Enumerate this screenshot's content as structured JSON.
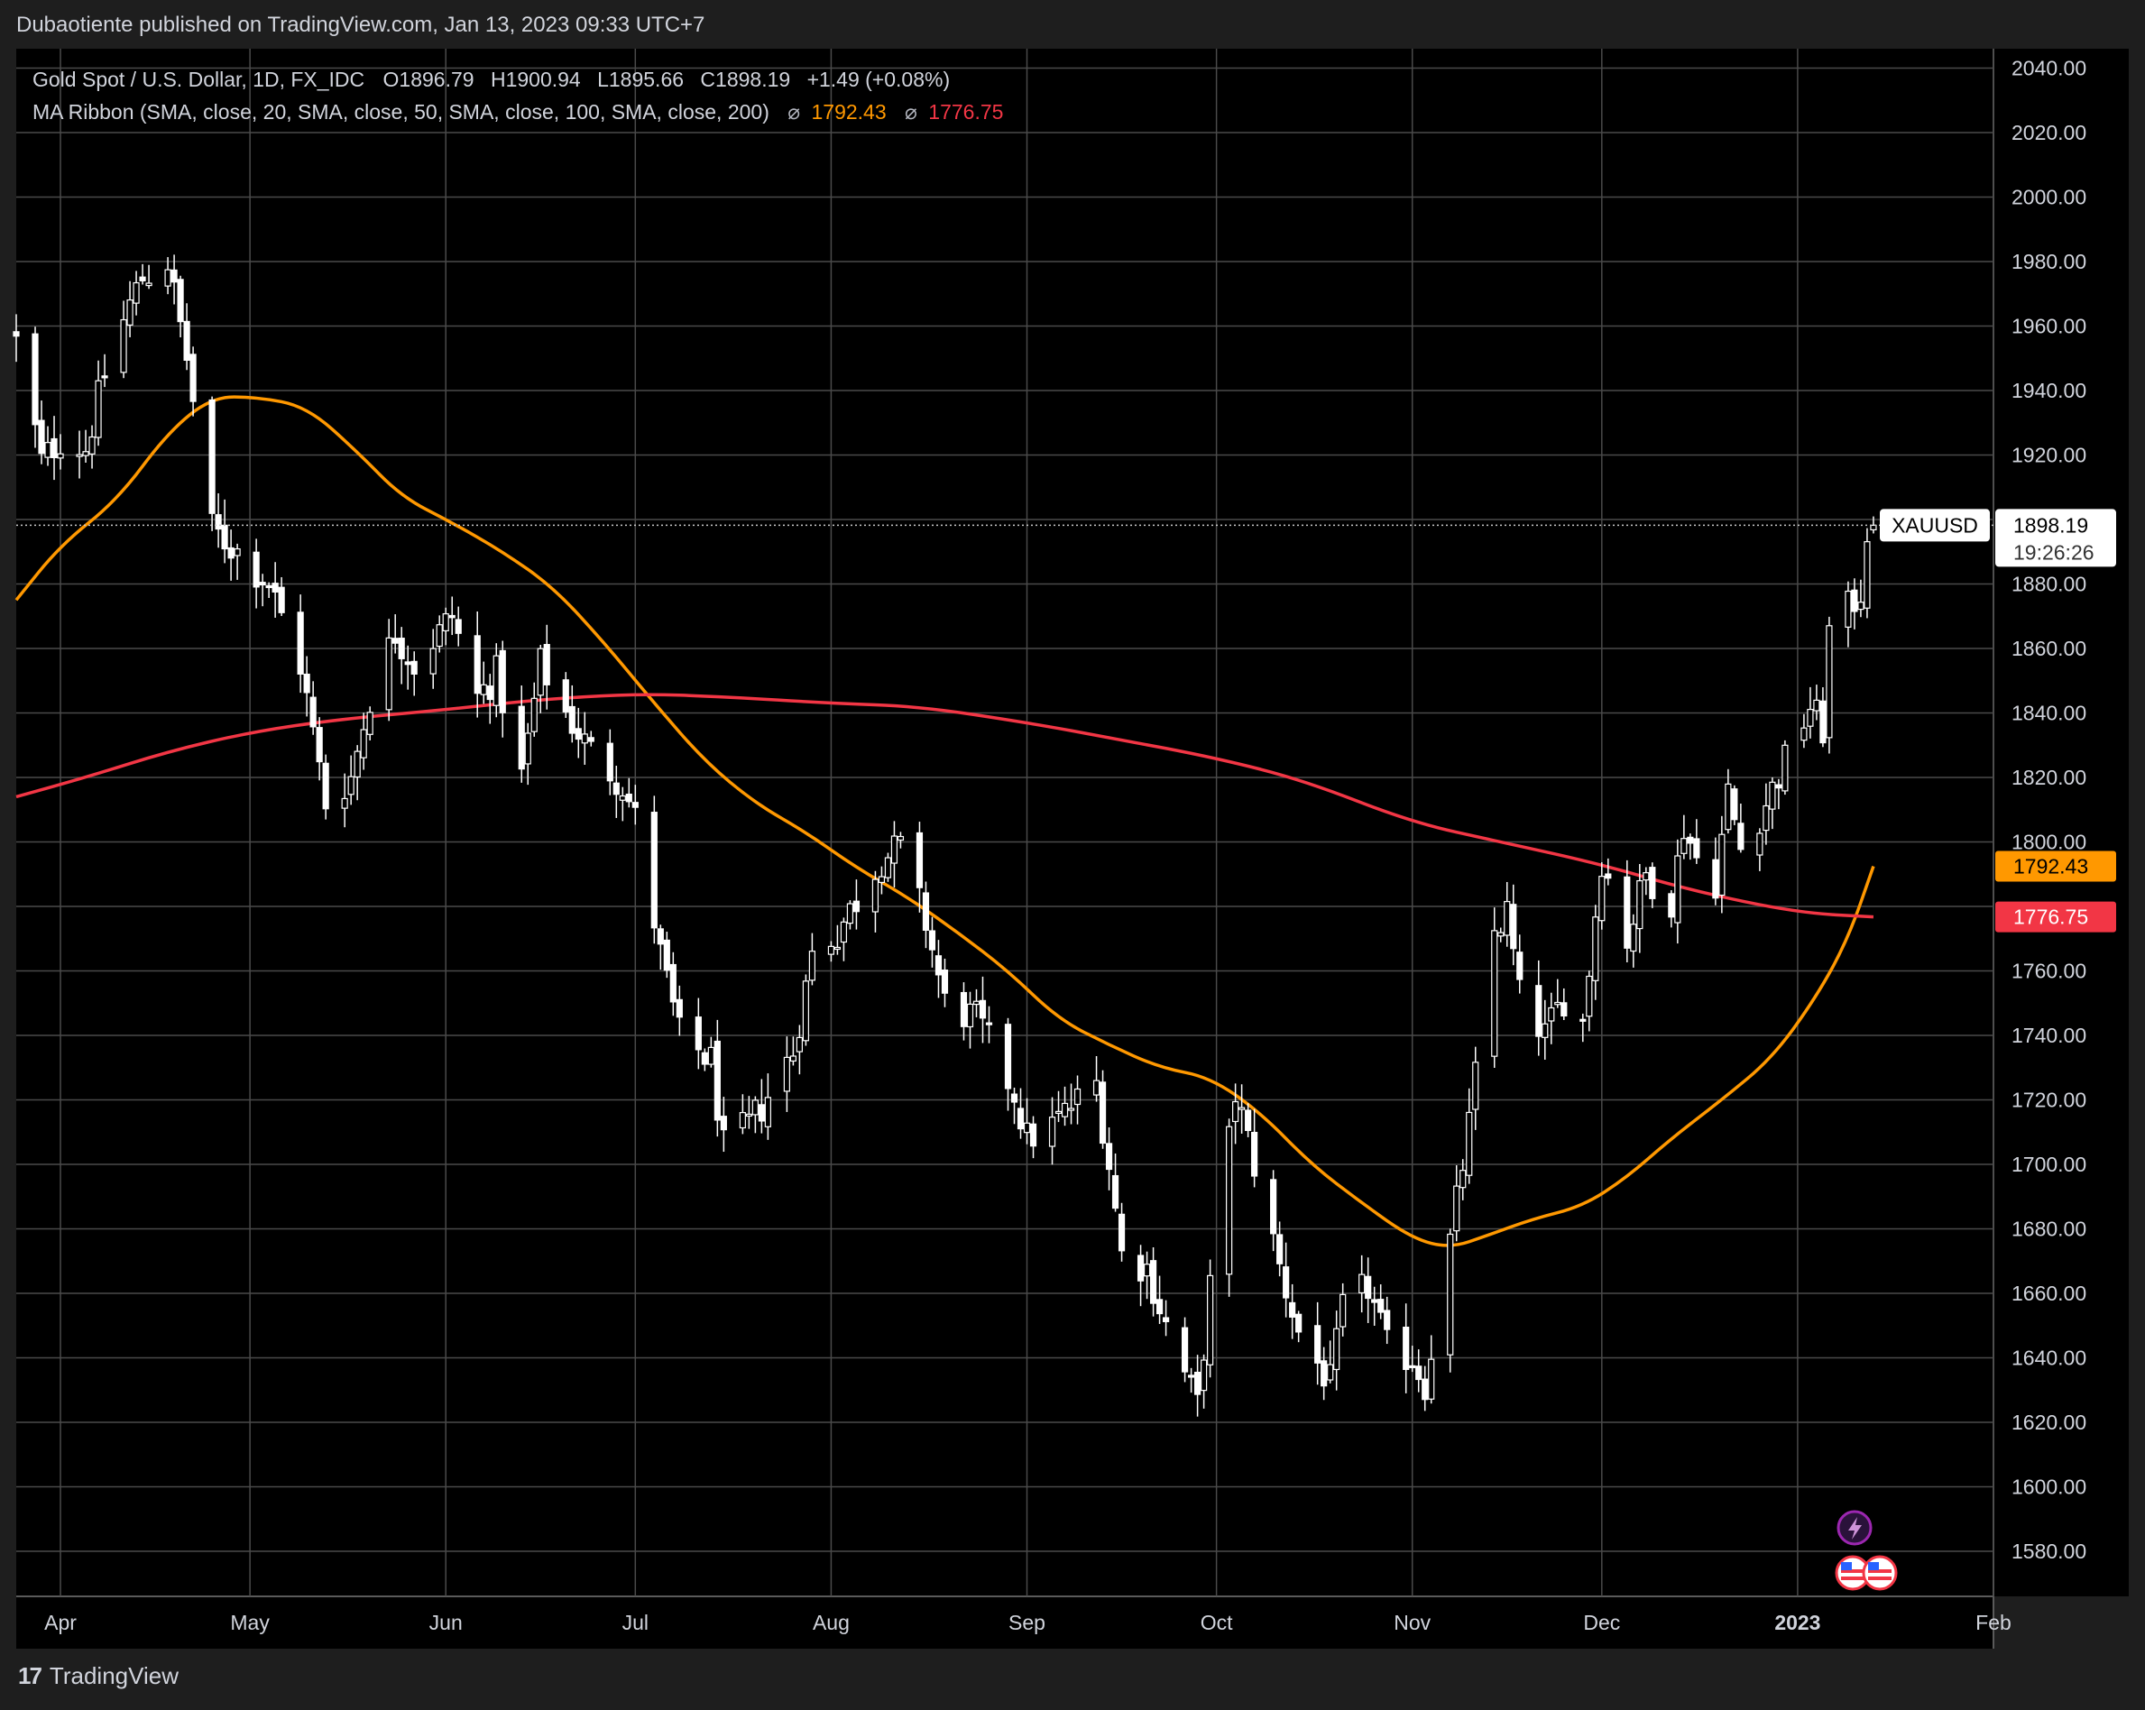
{
  "header": {
    "published_text": "Dubaotiente published on TradingView.com, Jan 13, 2023 09:33 UTC+7"
  },
  "legend": {
    "symbol_line": "Gold Spot / U.S. Dollar, 1D, FX_IDC",
    "open": "O1896.79",
    "high": "H1900.94",
    "low": "L1895.66",
    "close": "C1898.19",
    "change": "+1.49 (+0.08%)",
    "indicator_line": "MA Ribbon (SMA, close, 20, SMA, close, 50, SMA, close, 100, SMA, close, 200)",
    "ma1_value": "1792.43",
    "ma2_value": "1776.75",
    "ma_symbol": "⌀"
  },
  "colors": {
    "background": "#000000",
    "frame": "#1e1e1e",
    "grid": "#4a4a4a",
    "candle": "#ffffff",
    "ma_orange": "#ff9800",
    "ma_red": "#f23645"
  },
  "price_labels": {
    "symbol": "XAUUSD",
    "last_price": "1898.19",
    "countdown": "19:26:26",
    "ma1": "1792.43",
    "ma2": "1776.75"
  },
  "brand": {
    "name": "TradingView",
    "logo_text": "17"
  },
  "icons": {
    "flash": "lightning-icon",
    "flag": "us-flag-icon"
  },
  "chart_data": {
    "type": "candlestick",
    "title": "Gold Spot / U.S. Dollar, 1D, FX_IDC",
    "y_ticks": [
      1580,
      1600,
      1620,
      1640,
      1660,
      1680,
      1700,
      1720,
      1740,
      1760,
      1780,
      1800,
      1820,
      1840,
      1860,
      1880,
      1900,
      1920,
      1940,
      1960,
      1980,
      2000,
      2020,
      2040
    ],
    "y_tick_labels": [
      "1580.00",
      "1600.00",
      "1620.00",
      "1640.00",
      "1660.00",
      "1680.00",
      "1700.00",
      "1720.00",
      "1740.00",
      "1760.00",
      "",
      "1800.00",
      "1820.00",
      "1840.00",
      "1860.00",
      "1880.00",
      "",
      "1920.00",
      "1940.00",
      "1960.00",
      "1980.00",
      "2000.00",
      "2020.00",
      "2040.00"
    ],
    "ylim": [
      1566,
      2046
    ],
    "x_labels": [
      {
        "label": "Apr",
        "date": "2022-04-01",
        "bold": false
      },
      {
        "label": "May",
        "date": "2022-05-01",
        "bold": false
      },
      {
        "label": "Jun",
        "date": "2022-06-01",
        "bold": false
      },
      {
        "label": "Jul",
        "date": "2022-07-01",
        "bold": false
      },
      {
        "label": "Aug",
        "date": "2022-08-01",
        "bold": false
      },
      {
        "label": "Sep",
        "date": "2022-09-01",
        "bold": false
      },
      {
        "label": "Oct",
        "date": "2022-10-01",
        "bold": false
      },
      {
        "label": "Nov",
        "date": "2022-11-01",
        "bold": false
      },
      {
        "label": "Dec",
        "date": "2022-12-01",
        "bold": false
      },
      {
        "label": "2023",
        "date": "2023-01-01",
        "bold": true
      },
      {
        "label": "Feb",
        "date": "2023-02-01",
        "bold": false
      }
    ],
    "xlim": [
      "2022-03-25",
      "2023-02-01"
    ],
    "close_anchors": [
      [
        "2022-03-25",
        1955
      ],
      [
        "2022-03-29",
        1918
      ],
      [
        "2022-04-01",
        1925
      ],
      [
        "2022-04-05",
        1922
      ],
      [
        "2022-04-08",
        1945
      ],
      [
        "2022-04-12",
        1967
      ],
      [
        "2022-04-14",
        1975
      ],
      [
        "2022-04-18",
        1980
      ],
      [
        "2022-04-21",
        1950
      ],
      [
        "2022-04-25",
        1897
      ],
      [
        "2022-04-29",
        1890
      ],
      [
        "2022-05-04",
        1880
      ],
      [
        "2022-05-09",
        1855
      ],
      [
        "2022-05-13",
        1812
      ],
      [
        "2022-05-17",
        1820
      ],
      [
        "2022-05-20",
        1845
      ],
      [
        "2022-05-24",
        1865
      ],
      [
        "2022-05-27",
        1855
      ],
      [
        "2022-06-02",
        1870
      ],
      [
        "2022-06-06",
        1845
      ],
      [
        "2022-06-09",
        1852
      ],
      [
        "2022-06-13",
        1820
      ],
      [
        "2022-06-16",
        1855
      ],
      [
        "2022-06-20",
        1840
      ],
      [
        "2022-06-24",
        1828
      ],
      [
        "2022-06-29",
        1818
      ],
      [
        "2022-07-01",
        1807
      ],
      [
        "2022-07-05",
        1765
      ],
      [
        "2022-07-08",
        1740
      ],
      [
        "2022-07-13",
        1732
      ],
      [
        "2022-07-15",
        1705
      ],
      [
        "2022-07-19",
        1712
      ],
      [
        "2022-07-21",
        1718
      ],
      [
        "2022-07-26",
        1735
      ],
      [
        "2022-07-29",
        1765
      ],
      [
        "2022-08-02",
        1772
      ],
      [
        "2022-08-05",
        1782
      ],
      [
        "2022-08-09",
        1795
      ],
      [
        "2022-08-12",
        1798
      ],
      [
        "2022-08-16",
        1775
      ],
      [
        "2022-08-19",
        1750
      ],
      [
        "2022-08-24",
        1745
      ],
      [
        "2022-08-26",
        1738
      ],
      [
        "2022-08-30",
        1722
      ],
      [
        "2022-09-01",
        1708
      ],
      [
        "2022-09-05",
        1712
      ],
      [
        "2022-09-08",
        1718
      ],
      [
        "2022-09-12",
        1725
      ],
      [
        "2022-09-14",
        1700
      ],
      [
        "2022-09-16",
        1672
      ],
      [
        "2022-09-20",
        1668
      ],
      [
        "2022-09-23",
        1650
      ],
      [
        "2022-09-28",
        1625
      ],
      [
        "2022-09-30",
        1662
      ],
      [
        "2022-10-04",
        1722
      ],
      [
        "2022-10-07",
        1700
      ],
      [
        "2022-10-11",
        1668
      ],
      [
        "2022-10-14",
        1648
      ],
      [
        "2022-10-19",
        1632
      ],
      [
        "2022-10-21",
        1655
      ],
      [
        "2022-10-25",
        1662
      ],
      [
        "2022-10-28",
        1643
      ],
      [
        "2022-11-01",
        1640
      ],
      [
        "2022-11-03",
        1632
      ],
      [
        "2022-11-07",
        1676
      ],
      [
        "2022-11-10",
        1712
      ],
      [
        "2022-11-14",
        1772
      ],
      [
        "2022-11-16",
        1778
      ],
      [
        "2022-11-18",
        1752
      ],
      [
        "2022-11-22",
        1740
      ],
      [
        "2022-11-25",
        1752
      ],
      [
        "2022-11-28",
        1744
      ],
      [
        "2022-12-01",
        1795
      ],
      [
        "2022-12-05",
        1770
      ],
      [
        "2022-12-08",
        1790
      ],
      [
        "2022-12-12",
        1782
      ],
      [
        "2022-12-14",
        1805
      ],
      [
        "2022-12-16",
        1795
      ],
      [
        "2022-12-19",
        1788
      ],
      [
        "2022-12-21",
        1815
      ],
      [
        "2022-12-23",
        1798
      ],
      [
        "2022-12-27",
        1812
      ],
      [
        "2022-12-30",
        1825
      ],
      [
        "2023-01-03",
        1842
      ],
      [
        "2023-01-05",
        1835
      ],
      [
        "2023-01-06",
        1865
      ],
      [
        "2023-01-09",
        1872
      ],
      [
        "2023-01-11",
        1878
      ],
      [
        "2023-01-12",
        1897
      ],
      [
        "2023-01-13",
        1898.19
      ]
    ],
    "ma_series": [
      {
        "name": "MA Ribbon SMA 50",
        "color": "#ff9800",
        "points": [
          [
            "2022-03-25",
            1875
          ],
          [
            "2022-04-01",
            1892
          ],
          [
            "2022-04-10",
            1906
          ],
          [
            "2022-04-18",
            1927
          ],
          [
            "2022-04-25",
            1938
          ],
          [
            "2022-05-02",
            1938
          ],
          [
            "2022-05-10",
            1935
          ],
          [
            "2022-05-18",
            1921
          ],
          [
            "2022-05-25",
            1907
          ],
          [
            "2022-06-02",
            1899
          ],
          [
            "2022-06-10",
            1890
          ],
          [
            "2022-06-18",
            1879
          ],
          [
            "2022-06-26",
            1862
          ],
          [
            "2022-07-04",
            1843
          ],
          [
            "2022-07-12",
            1825
          ],
          [
            "2022-07-20",
            1812
          ],
          [
            "2022-07-28",
            1803
          ],
          [
            "2022-08-05",
            1792
          ],
          [
            "2022-08-13",
            1783
          ],
          [
            "2022-08-21",
            1772
          ],
          [
            "2022-08-29",
            1760
          ],
          [
            "2022-09-06",
            1745
          ],
          [
            "2022-09-14",
            1737
          ],
          [
            "2022-09-22",
            1730
          ],
          [
            "2022-09-30",
            1727
          ],
          [
            "2022-10-08",
            1716
          ],
          [
            "2022-10-16",
            1700
          ],
          [
            "2022-10-24",
            1688
          ],
          [
            "2022-11-01",
            1677
          ],
          [
            "2022-11-07",
            1674
          ],
          [
            "2022-11-13",
            1678
          ],
          [
            "2022-11-20",
            1683
          ],
          [
            "2022-11-28",
            1687
          ],
          [
            "2022-12-05",
            1696
          ],
          [
            "2022-12-12",
            1708
          ],
          [
            "2022-12-20",
            1720
          ],
          [
            "2022-12-28",
            1733
          ],
          [
            "2023-01-04",
            1752
          ],
          [
            "2023-01-09",
            1770
          ],
          [
            "2023-01-13",
            1792.43
          ]
        ]
      },
      {
        "name": "MA Ribbon SMA 200",
        "color": "#f23645",
        "points": [
          [
            "2022-03-25",
            1814
          ],
          [
            "2022-04-05",
            1820
          ],
          [
            "2022-04-18",
            1828
          ],
          [
            "2022-05-01",
            1834
          ],
          [
            "2022-05-15",
            1838
          ],
          [
            "2022-06-01",
            1841
          ],
          [
            "2022-06-15",
            1844
          ],
          [
            "2022-07-01",
            1846
          ],
          [
            "2022-07-15",
            1845
          ],
          [
            "2022-08-01",
            1843
          ],
          [
            "2022-08-15",
            1842
          ],
          [
            "2022-09-01",
            1837
          ],
          [
            "2022-09-15",
            1832
          ],
          [
            "2022-10-01",
            1826
          ],
          [
            "2022-10-15",
            1819
          ],
          [
            "2022-11-01",
            1806
          ],
          [
            "2022-11-15",
            1800
          ],
          [
            "2022-12-01",
            1793
          ],
          [
            "2022-12-15",
            1785
          ],
          [
            "2023-01-01",
            1778
          ],
          [
            "2023-01-13",
            1776.75
          ]
        ]
      }
    ],
    "last_price": 1898.19,
    "grid": true
  }
}
